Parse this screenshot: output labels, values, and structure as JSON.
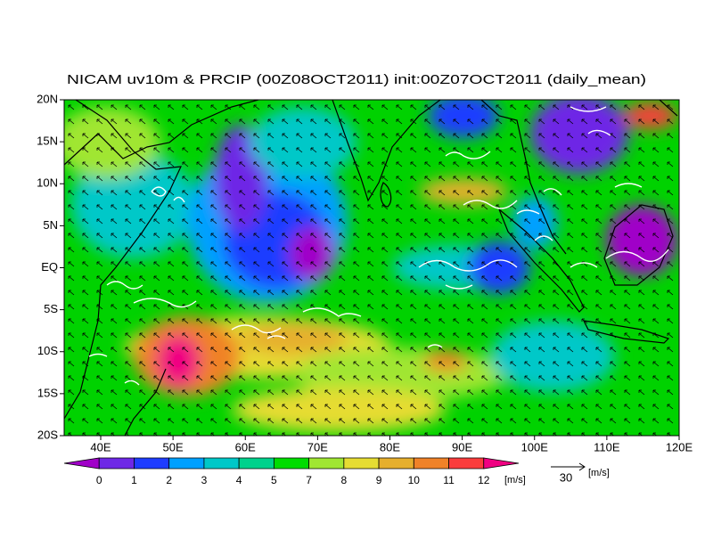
{
  "title": "NICAM uv10m & PRCIP (00Z08OCT2011) init:00Z07OCT2011 (daily_mean)",
  "map": {
    "lat_labels": [
      "20N",
      "15N",
      "10N",
      "5N",
      "EQ",
      "5S",
      "10S",
      "15S",
      "20S"
    ],
    "lon_labels": [
      "40E",
      "50E",
      "60E",
      "70E",
      "80E",
      "90E",
      "100E",
      "110E",
      "120E"
    ]
  },
  "colorbar": {
    "colors": [
      "#a000c8",
      "#6e28e6",
      "#1e3cff",
      "#00a0ff",
      "#00c8c8",
      "#00d28c",
      "#00dc00",
      "#a0e632",
      "#e6dc32",
      "#e6af2d",
      "#f08228",
      "#fa3c3c",
      "#f00082"
    ],
    "labels": [
      0,
      1,
      2,
      3,
      4,
      5,
      7,
      8,
      9,
      10,
      11,
      12
    ],
    "unit": "[m/s]"
  },
  "vector_key": {
    "value": 30,
    "unit": "[m/s]"
  }
}
